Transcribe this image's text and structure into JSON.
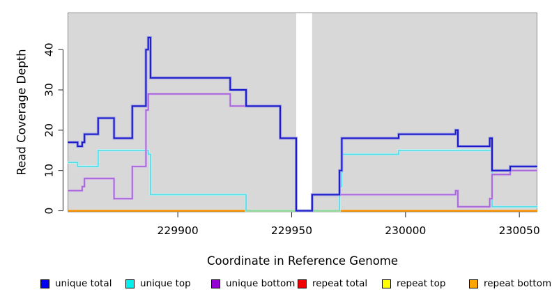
{
  "chart_data": {
    "type": "line",
    "subtype": "step",
    "title": "",
    "xlabel": "Coordinate in Reference Genome",
    "ylabel": "Read Coverage Depth",
    "xlim": [
      229851.6,
      230057.9
    ],
    "ylim": [
      0,
      49.2
    ],
    "x_ticks": [
      229900,
      229950,
      230000,
      230050
    ],
    "y_ticks": [
      0,
      10,
      20,
      30,
      40
    ],
    "grid": false,
    "panel_background": "#d8d8d8",
    "panel_border_color": "#8a8a8a",
    "gap_region": {
      "from": 229952,
      "to": 229959,
      "color": "#ffffff"
    },
    "zero_overlap_segment": {
      "from": 229930,
      "to": 229971,
      "value": 0,
      "color": "#9bd9a4"
    },
    "series": [
      {
        "name": "unique total",
        "color": "#1a1acc",
        "halo": "#a0a0e0",
        "steps": [
          [
            229851.6,
            17
          ],
          [
            229856,
            16
          ],
          [
            229858,
            17
          ],
          [
            229859,
            19
          ],
          [
            229865,
            23
          ],
          [
            229872,
            18
          ],
          [
            229880,
            26
          ],
          [
            229886,
            40
          ],
          [
            229887,
            43
          ],
          [
            229888,
            33
          ],
          [
            229923,
            30
          ],
          [
            229930,
            26
          ],
          [
            229945,
            18
          ],
          [
            229952,
            0
          ],
          [
            229959,
            4
          ],
          [
            229971,
            10
          ],
          [
            229972,
            18
          ],
          [
            229997,
            19
          ],
          [
            230022,
            20
          ],
          [
            230023,
            16
          ],
          [
            230037,
            18
          ],
          [
            230038,
            10
          ],
          [
            230046,
            11
          ]
        ]
      },
      {
        "name": "unique top",
        "color": "#4edee8",
        "halo": "#c2f1f4",
        "steps": [
          [
            229851.6,
            12
          ],
          [
            229856,
            11
          ],
          [
            229865,
            15
          ],
          [
            229887,
            14
          ],
          [
            229888,
            4
          ],
          [
            229930,
            0
          ],
          [
            229971,
            6
          ],
          [
            229972,
            14
          ],
          [
            229997,
            15
          ],
          [
            230038,
            1
          ]
        ]
      },
      {
        "name": "unique bottom",
        "color": "#a765d8",
        "halo": "#d5b9ec",
        "steps": [
          [
            229851.6,
            5
          ],
          [
            229858,
            6
          ],
          [
            229859,
            8
          ],
          [
            229872,
            3
          ],
          [
            229880,
            11
          ],
          [
            229886,
            25
          ],
          [
            229887,
            29
          ],
          [
            229923,
            26
          ],
          [
            229945,
            18
          ],
          [
            229952,
            0
          ],
          [
            229959,
            4
          ],
          [
            230022,
            5
          ],
          [
            230023,
            1
          ],
          [
            230037,
            3
          ],
          [
            230038,
            9
          ],
          [
            230046,
            10
          ]
        ]
      },
      {
        "name": "repeat total",
        "color": "#e00000",
        "halo": null,
        "steps": [
          [
            229851.6,
            0
          ]
        ]
      },
      {
        "name": "repeat top",
        "color": "#f5f500",
        "halo": null,
        "steps": [
          [
            229851.6,
            0
          ]
        ]
      },
      {
        "name": "repeat bottom",
        "color": "#ff9500",
        "halo": null,
        "steps": [
          [
            229851.6,
            0
          ]
        ]
      }
    ]
  },
  "legend": {
    "items": [
      {
        "label": "unique total",
        "color": "#0000f0"
      },
      {
        "label": "unique top",
        "color": "#00f0f0"
      },
      {
        "label": "unique bottom",
        "color": "#9400d3"
      },
      {
        "label": "repeat total",
        "color": "#f00000"
      },
      {
        "label": "repeat top",
        "color": "#ffff00"
      },
      {
        "label": "repeat bottom",
        "color": "#ffa500"
      }
    ]
  }
}
